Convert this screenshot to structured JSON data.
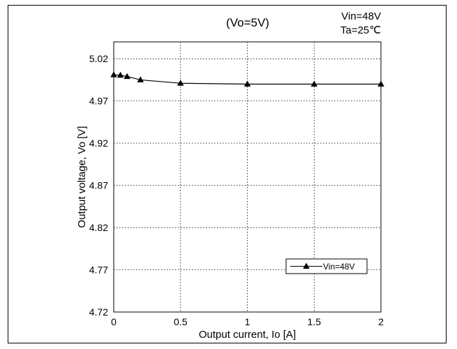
{
  "chart_data": {
    "type": "line",
    "title": "(Vo=5V)",
    "conditions": [
      "Vin=48V",
      "Ta=25℃"
    ],
    "xlabel": "Output current, Io [A]",
    "ylabel": "Output voltage, Vo [V]",
    "xlim": [
      0,
      2
    ],
    "ylim": [
      4.72,
      5.04
    ],
    "x_ticks": [
      0,
      0.5,
      1,
      1.5,
      2
    ],
    "x_tick_labels": [
      "0",
      "0.5",
      "1",
      "1.5",
      "2"
    ],
    "y_ticks": [
      4.72,
      4.77,
      4.82,
      4.87,
      4.92,
      4.97,
      5.02
    ],
    "y_tick_labels": [
      "4.72",
      "4.77",
      "4.82",
      "4.87",
      "4.92",
      "4.97",
      "5.02"
    ],
    "grid": true,
    "grid_style": "dotted",
    "legend_position": "bottom-right",
    "series": [
      {
        "name": "Vin=48V",
        "marker": "triangle",
        "color": "#000000",
        "x": [
          0,
          0.05,
          0.1,
          0.2,
          0.5,
          1,
          1.5,
          2
        ],
        "y": [
          5.001,
          5.0005,
          4.999,
          4.995,
          4.991,
          4.99,
          4.99,
          4.99
        ]
      }
    ]
  }
}
